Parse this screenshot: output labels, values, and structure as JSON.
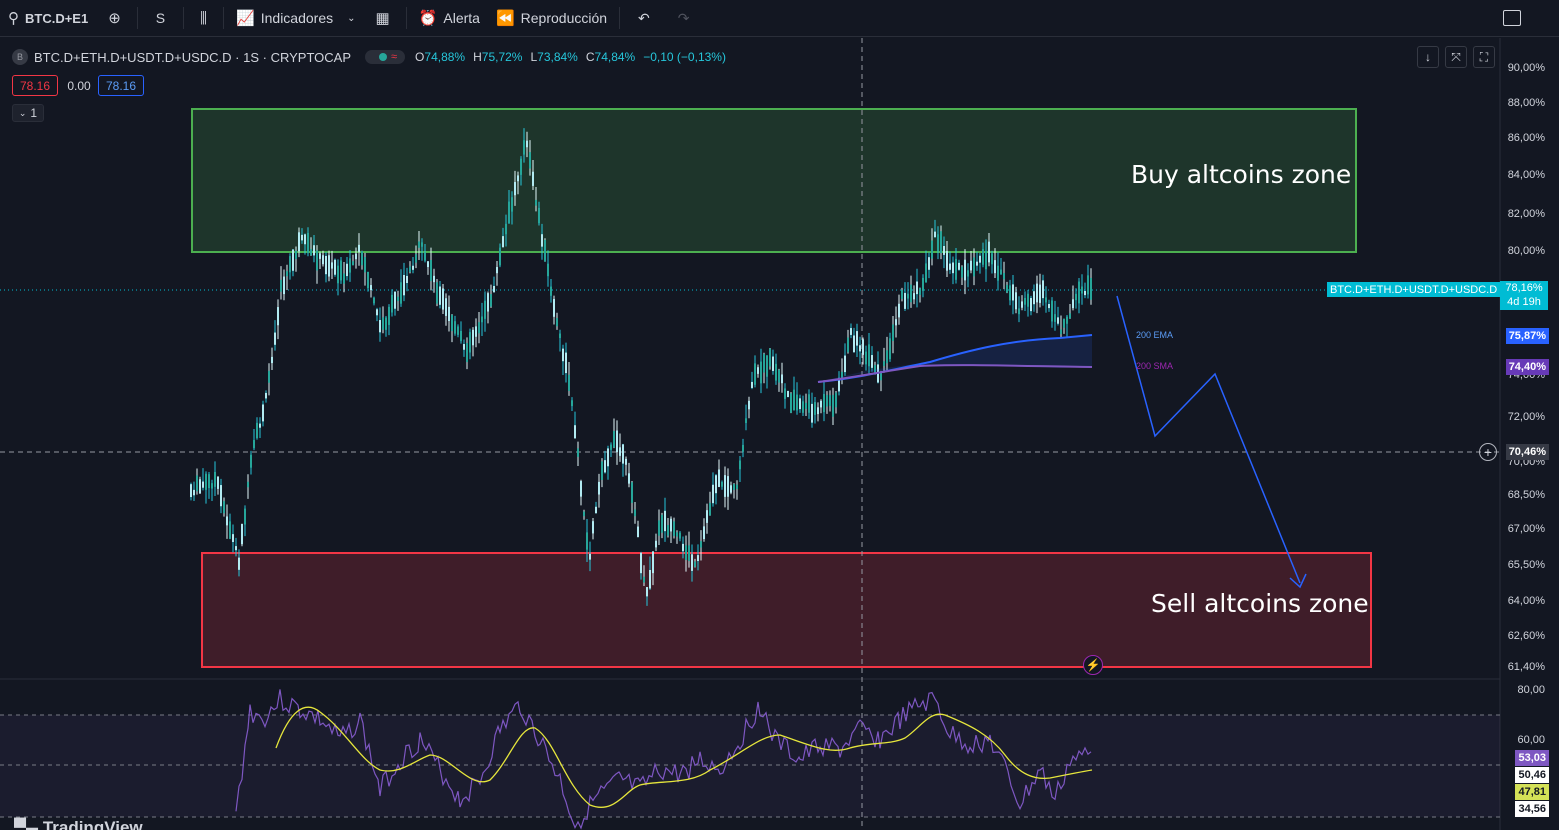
{
  "toolbar": {
    "symbol": "BTC.D+E1",
    "interval": "S",
    "indicators_label": "Indicadores",
    "alert_label": "Alerta",
    "replay_label": "Reproducción"
  },
  "legend": {
    "series_title": "BTC.D+ETH.D+USDT.D+USDC.D · 1S · CRYPTOCAP",
    "logo_letter": "B",
    "open_label": "O",
    "open_value": "74,88%",
    "high_label": "H",
    "high_value": "75,72%",
    "low_label": "L",
    "low_value": "73,84%",
    "close_label": "C",
    "close_value": "74,84%",
    "change": "−0,10 (−0,13%)",
    "sell_price": "78.16",
    "spread": "0.00",
    "buy_price": "78.16",
    "collapse_label": "1"
  },
  "annotations": {
    "buy_zone": "Buy altcoins zone",
    "sell_zone": "Sell altcoins zone",
    "ema_label": "200  EMA",
    "sma_label": "200  SMA"
  },
  "price_axis": {
    "ticks": [
      "90,00%",
      "88,00%",
      "86,00%",
      "84,00%",
      "82,00%",
      "80,00%",
      "74,00%",
      "72,00%",
      "70,00%",
      "68,50%",
      "67,00%",
      "65,50%",
      "64,00%",
      "62,60%",
      "61,40%"
    ],
    "last_price": "78,16%",
    "countdown": "4d 19h",
    "symbol_tag": "BTC.D+ETH.D+USDT.D+USDC.D",
    "ema_value": "75,87%",
    "sma_value": "74,40%",
    "crosshair_value": "70,46%"
  },
  "rsi_axis": {
    "ticks": [
      "80,00",
      "60,00"
    ],
    "rsi_value": "53,03",
    "upper_band": "50,46",
    "ma_value": "47,81",
    "lower_band": "34,56"
  },
  "colors": {
    "background": "#131722",
    "buy_zone": "#4caf50",
    "sell_zone": "#f23645",
    "candle": "#26c6da",
    "ema": "#2962ff",
    "sma": "#7e57c2",
    "rsi": "#7e57c2",
    "rsi_ma": "#e6e63c",
    "projection": "#2962ff"
  },
  "watermark": "TradingView"
}
